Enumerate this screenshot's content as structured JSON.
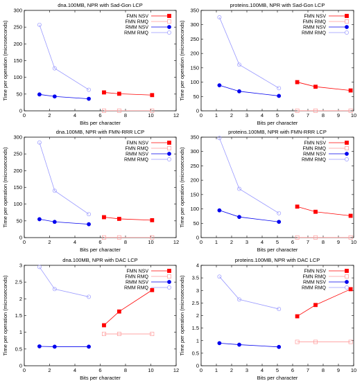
{
  "style": {
    "colors": {
      "FMN NSV": "#ff0000",
      "FMN RMQ": "#ff9999",
      "RMM NSV": "#0000ee",
      "RMM RMQ": "#9999ff"
    },
    "markers": {
      "FMN NSV": "filled-square",
      "FMN RMQ": "open-square",
      "RMM NSV": "filled-circle",
      "RMM RMQ": "open-circle"
    }
  },
  "chart_data": [
    {
      "type": "line",
      "title": "dna.100MB, NPR with Sad-Gon LCP",
      "xlabel": "Bits per character",
      "ylabel": "Time per operation (microseconds)",
      "xlim": [
        0,
        12
      ],
      "ylim": [
        0,
        300
      ],
      "xticks": [
        0,
        2,
        4,
        6,
        8,
        10,
        12
      ],
      "yticks": [
        0,
        50,
        100,
        150,
        200,
        250,
        300
      ],
      "xtick_labels": [
        "0",
        "2",
        "4",
        "6",
        "8",
        "10",
        "12"
      ],
      "ytick_labels": [
        "0",
        "50",
        "100",
        "150",
        "200",
        "250",
        "300"
      ],
      "legend": "top-right",
      "series": [
        {
          "name": "FMN NSV",
          "x": [
            6.3,
            7.5,
            10.1
          ],
          "y": [
            55,
            51,
            47
          ]
        },
        {
          "name": "FMN RMQ",
          "x": [
            6.3,
            7.5,
            10.1
          ],
          "y": [
            0.5,
            0.5,
            0.5
          ]
        },
        {
          "name": "RMM NSV",
          "x": [
            1.2,
            2.4,
            5.1
          ],
          "y": [
            49,
            43,
            36
          ]
        },
        {
          "name": "RMM RMQ",
          "x": [
            1.2,
            2.4,
            5.1
          ],
          "y": [
            257,
            127,
            63
          ]
        }
      ]
    },
    {
      "type": "line",
      "title": "proteins.100MB, NPR with Sad-Gon LCP",
      "xlabel": "Bits per character",
      "ylabel": "Time per operation (microseconds)",
      "xlim": [
        0,
        10
      ],
      "ylim": [
        0,
        350
      ],
      "xticks": [
        0,
        1,
        2,
        3,
        4,
        5,
        6,
        7,
        8,
        9,
        10
      ],
      "yticks": [
        0,
        50,
        100,
        150,
        200,
        250,
        300,
        350
      ],
      "xtick_labels": [
        "0",
        "1",
        "2",
        "3",
        "4",
        "5",
        "6",
        "7",
        "8",
        "9",
        "10"
      ],
      "ytick_labels": [
        "0",
        "50",
        "100",
        "150",
        "200",
        "250",
        "300",
        "350"
      ],
      "legend": "top-right",
      "series": [
        {
          "name": "FMN NSV",
          "x": [
            6.3,
            7.5,
            9.8
          ],
          "y": [
            100,
            84,
            71
          ]
        },
        {
          "name": "FMN RMQ",
          "x": [
            6.3,
            7.5,
            9.8
          ],
          "y": [
            0.5,
            0.5,
            0.5
          ]
        },
        {
          "name": "RMM NSV",
          "x": [
            1.2,
            2.5,
            5.1
          ],
          "y": [
            89,
            68,
            52
          ]
        },
        {
          "name": "RMM RMQ",
          "x": [
            1.2,
            2.5,
            5.1
          ],
          "y": [
            326,
            161,
            79
          ]
        }
      ]
    },
    {
      "type": "line",
      "title": "dna.100MB, NPR with FMN-RRR LCP",
      "xlabel": "Bits per character",
      "ylabel": "Time per operation (microseconds)",
      "xlim": [
        0,
        12
      ],
      "ylim": [
        0,
        300
      ],
      "xticks": [
        0,
        2,
        4,
        6,
        8,
        10,
        12
      ],
      "yticks": [
        0,
        50,
        100,
        150,
        200,
        250,
        300
      ],
      "xtick_labels": [
        "0",
        "2",
        "4",
        "6",
        "8",
        "10",
        "12"
      ],
      "ytick_labels": [
        "0",
        "50",
        "100",
        "150",
        "200",
        "250",
        "300"
      ],
      "legend": "top-right",
      "series": [
        {
          "name": "FMN NSV",
          "x": [
            6.3,
            7.5,
            10.1
          ],
          "y": [
            61,
            56,
            52
          ]
        },
        {
          "name": "FMN RMQ",
          "x": [
            6.3,
            7.5,
            10.1
          ],
          "y": [
            0.5,
            0.5,
            0.5
          ]
        },
        {
          "name": "RMM NSV",
          "x": [
            1.2,
            2.4,
            5.1
          ],
          "y": [
            55,
            47,
            40
          ]
        },
        {
          "name": "RMM RMQ",
          "x": [
            1.2,
            2.4,
            5.1
          ],
          "y": [
            284,
            140,
            70
          ]
        }
      ]
    },
    {
      "type": "line",
      "title": "proteins.100MB, NPR with FMN-RRR LCP",
      "xlabel": "Bits per character",
      "ylabel": "Time per operation (microseconds)",
      "xlim": [
        0,
        10
      ],
      "ylim": [
        0,
        350
      ],
      "xticks": [
        0,
        1,
        2,
        3,
        4,
        5,
        6,
        7,
        8,
        9,
        10
      ],
      "yticks": [
        0,
        50,
        100,
        150,
        200,
        250,
        300,
        350
      ],
      "xtick_labels": [
        "0",
        "1",
        "2",
        "3",
        "4",
        "5",
        "6",
        "7",
        "8",
        "9",
        "10"
      ],
      "ytick_labels": [
        "0",
        "50",
        "100",
        "150",
        "200",
        "250",
        "300",
        "350"
      ],
      "legend": "top-right",
      "series": [
        {
          "name": "FMN NSV",
          "x": [
            6.3,
            7.5,
            9.8
          ],
          "y": [
            108,
            90,
            76
          ]
        },
        {
          "name": "FMN RMQ",
          "x": [
            6.3,
            7.5,
            9.8
          ],
          "y": [
            0.5,
            0.5,
            0.5
          ]
        },
        {
          "name": "RMM NSV",
          "x": [
            1.2,
            2.5,
            5.1
          ],
          "y": [
            95,
            72,
            55
          ]
        },
        {
          "name": "RMM RMQ",
          "x": [
            1.2,
            2.5,
            5.1
          ],
          "y": [
            347,
            170,
            85
          ]
        }
      ]
    },
    {
      "type": "line",
      "title": "dna.100MB, NPR with DAC LCP",
      "xlabel": "Bits per character",
      "ylabel": "Time per operation (microseconds)",
      "xlim": [
        0,
        12
      ],
      "ylim": [
        0,
        3
      ],
      "xticks": [
        0,
        2,
        4,
        6,
        8,
        10,
        12
      ],
      "yticks": [
        0,
        0.5,
        1,
        1.5,
        2,
        2.5,
        3
      ],
      "xtick_labels": [
        "0",
        "2",
        "4",
        "6",
        "8",
        "10",
        "12"
      ],
      "ytick_labels": [
        "0",
        "0.5",
        "1",
        "1.5",
        "2",
        "2.5",
        "3"
      ],
      "legend": "top-right",
      "series": [
        {
          "name": "FMN NSV",
          "x": [
            6.3,
            7.5,
            10.1
          ],
          "y": [
            1.21,
            1.62,
            2.26
          ]
        },
        {
          "name": "FMN RMQ",
          "x": [
            6.3,
            7.5,
            10.1
          ],
          "y": [
            0.95,
            0.95,
            0.95
          ]
        },
        {
          "name": "RMM NSV",
          "x": [
            1.2,
            2.4,
            5.1
          ],
          "y": [
            0.58,
            0.57,
            0.57
          ]
        },
        {
          "name": "RMM RMQ",
          "x": [
            1.2,
            2.4,
            5.1
          ],
          "y": [
            2.95,
            2.29,
            2.06
          ]
        }
      ]
    },
    {
      "type": "line",
      "title": "proteins.100MB, NPR with DAC LCP",
      "xlabel": "Bits per character",
      "ylabel": "Time per operation (microseconds)",
      "xlim": [
        0,
        10
      ],
      "ylim": [
        0,
        4
      ],
      "xticks": [
        0,
        1,
        2,
        3,
        4,
        5,
        6,
        7,
        8,
        9,
        10
      ],
      "yticks": [
        0,
        0.5,
        1,
        1.5,
        2,
        2.5,
        3,
        3.5,
        4
      ],
      "xtick_labels": [
        "0",
        "1",
        "2",
        "3",
        "4",
        "5",
        "6",
        "7",
        "8",
        "9",
        "10"
      ],
      "ytick_labels": [
        "0",
        "0.5",
        "1",
        "1.5",
        "2",
        "2.5",
        "3",
        "3.5",
        "4"
      ],
      "legend": "top-right",
      "series": [
        {
          "name": "FMN NSV",
          "x": [
            6.3,
            7.5,
            9.8
          ],
          "y": [
            1.97,
            2.42,
            3.05
          ]
        },
        {
          "name": "FMN RMQ",
          "x": [
            6.3,
            7.5,
            9.8
          ],
          "y": [
            0.95,
            0.95,
            0.95
          ]
        },
        {
          "name": "RMM NSV",
          "x": [
            1.2,
            2.5,
            5.1
          ],
          "y": [
            0.9,
            0.84,
            0.75
          ]
        },
        {
          "name": "RMM RMQ",
          "x": [
            1.2,
            2.5,
            5.1
          ],
          "y": [
            3.55,
            2.64,
            2.26
          ]
        }
      ]
    }
  ]
}
